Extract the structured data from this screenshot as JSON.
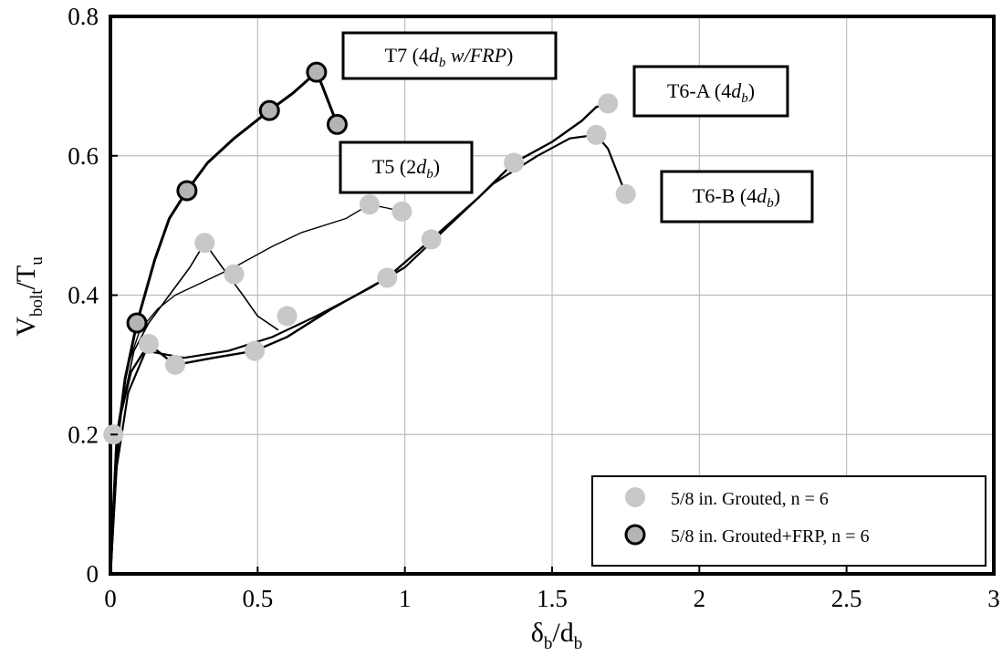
{
  "chart_data": {
    "type": "scatter",
    "title": "",
    "xlabel": "δ_b/d_b",
    "ylabel": "V_bolt/T_u",
    "xlim": [
      0,
      3
    ],
    "ylim": [
      0,
      0.8
    ],
    "x_ticks": [
      0,
      0.5,
      1,
      1.5,
      2,
      2.5,
      3
    ],
    "x_tick_labels": [
      "0",
      "0.5",
      "1",
      "1.5",
      "2",
      "2.5",
      "3"
    ],
    "y_ticks": [
      0,
      0.2,
      0.4,
      0.6,
      0.8
    ],
    "y_tick_labels": [
      "0",
      "0.2",
      "0.4",
      "0.6",
      "0.8"
    ],
    "grid": true,
    "legend_position": "bottom-right",
    "colors": {
      "grouted": "#c8c8c8",
      "frp": "#b4b4b4",
      "curve": "#000000"
    },
    "series": [
      {
        "name": "5/8 in. Grouted, n = 6",
        "marker": "filled-circle",
        "points": [
          {
            "x": 0.01,
            "y": 0.2
          },
          {
            "x": 0.13,
            "y": 0.33
          },
          {
            "x": 0.22,
            "y": 0.3
          },
          {
            "x": 0.32,
            "y": 0.475
          },
          {
            "x": 0.42,
            "y": 0.43
          },
          {
            "x": 0.49,
            "y": 0.32
          },
          {
            "x": 0.6,
            "y": 0.37
          },
          {
            "x": 0.88,
            "y": 0.53
          },
          {
            "x": 0.94,
            "y": 0.425
          },
          {
            "x": 0.99,
            "y": 0.52
          },
          {
            "x": 1.09,
            "y": 0.48
          },
          {
            "x": 1.37,
            "y": 0.59
          },
          {
            "x": 1.65,
            "y": 0.63
          },
          {
            "x": 1.69,
            "y": 0.675
          },
          {
            "x": 1.75,
            "y": 0.545
          }
        ]
      },
      {
        "name": "5/8 in. Grouted+FRP, n = 6",
        "marker": "outlined-circle",
        "points": [
          {
            "x": 0.09,
            "y": 0.36
          },
          {
            "x": 0.26,
            "y": 0.55
          },
          {
            "x": 0.54,
            "y": 0.665
          },
          {
            "x": 0.7,
            "y": 0.72
          },
          {
            "x": 0.77,
            "y": 0.645
          }
        ]
      }
    ],
    "curves": [
      {
        "label": "T7 (4d_b w/FRP)",
        "points": [
          [
            0,
            0
          ],
          [
            0.02,
            0.18
          ],
          [
            0.05,
            0.28
          ],
          [
            0.09,
            0.36
          ],
          [
            0.15,
            0.45
          ],
          [
            0.2,
            0.51
          ],
          [
            0.26,
            0.55
          ],
          [
            0.33,
            0.59
          ],
          [
            0.42,
            0.625
          ],
          [
            0.54,
            0.665
          ],
          [
            0.62,
            0.69
          ],
          [
            0.7,
            0.72
          ],
          [
            0.72,
            0.7
          ],
          [
            0.77,
            0.645
          ]
        ]
      },
      {
        "label": "T5 (2d_b)",
        "points": [
          [
            0,
            0
          ],
          [
            0.02,
            0.2
          ],
          [
            0.06,
            0.3
          ],
          [
            0.1,
            0.35
          ],
          [
            0.16,
            0.38
          ],
          [
            0.22,
            0.4
          ],
          [
            0.32,
            0.42
          ],
          [
            0.42,
            0.44
          ],
          [
            0.55,
            0.47
          ],
          [
            0.65,
            0.49
          ],
          [
            0.8,
            0.51
          ],
          [
            0.88,
            0.53
          ],
          [
            0.94,
            0.525
          ],
          [
            0.99,
            0.52
          ]
        ]
      },
      {
        "label": "T5 (2d_b) secondary",
        "points": [
          [
            0,
            0
          ],
          [
            0.03,
            0.22
          ],
          [
            0.08,
            0.32
          ],
          [
            0.13,
            0.36
          ],
          [
            0.2,
            0.4
          ],
          [
            0.27,
            0.44
          ],
          [
            0.32,
            0.475
          ],
          [
            0.38,
            0.44
          ],
          [
            0.45,
            0.4
          ],
          [
            0.5,
            0.37
          ],
          [
            0.57,
            0.35
          ]
        ]
      },
      {
        "label": "T6-A (4d_b)",
        "points": [
          [
            0,
            0
          ],
          [
            0.03,
            0.22
          ],
          [
            0.07,
            0.29
          ],
          [
            0.13,
            0.33
          ],
          [
            0.22,
            0.3
          ],
          [
            0.35,
            0.31
          ],
          [
            0.49,
            0.32
          ],
          [
            0.6,
            0.34
          ],
          [
            0.75,
            0.38
          ],
          [
            0.94,
            0.425
          ],
          [
            1.09,
            0.48
          ],
          [
            1.25,
            0.54
          ],
          [
            1.37,
            0.59
          ],
          [
            1.5,
            0.62
          ],
          [
            1.6,
            0.65
          ],
          [
            1.65,
            0.67
          ],
          [
            1.69,
            0.675
          ]
        ]
      },
      {
        "label": "T6-B (4d_b)",
        "points": [
          [
            0,
            0
          ],
          [
            0.02,
            0.15
          ],
          [
            0.06,
            0.26
          ],
          [
            0.12,
            0.32
          ],
          [
            0.25,
            0.31
          ],
          [
            0.4,
            0.32
          ],
          [
            0.55,
            0.34
          ],
          [
            0.7,
            0.37
          ],
          [
            0.88,
            0.41
          ],
          [
            1.0,
            0.44
          ],
          [
            1.15,
            0.5
          ],
          [
            1.3,
            0.56
          ],
          [
            1.45,
            0.6
          ],
          [
            1.56,
            0.625
          ],
          [
            1.65,
            0.63
          ],
          [
            1.69,
            0.61
          ],
          [
            1.75,
            0.545
          ]
        ]
      }
    ],
    "annotations": [
      {
        "id": "t7",
        "text": "T7 (4d_b w/FRP)"
      },
      {
        "id": "t6a",
        "text": "T6-A (4d_b)"
      },
      {
        "id": "t5",
        "text": "T5 (2d_b)"
      },
      {
        "id": "t6b",
        "text": "T6-B (4d_b)"
      }
    ]
  }
}
